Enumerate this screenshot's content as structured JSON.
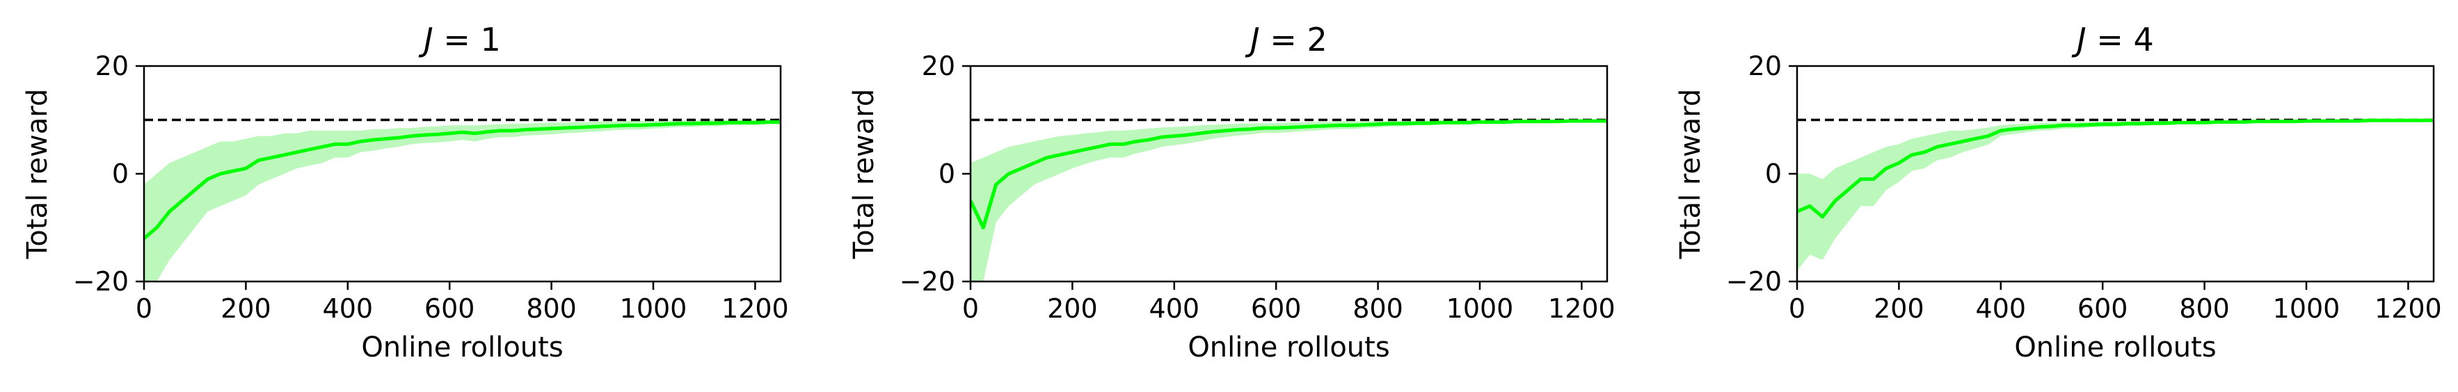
{
  "chart_data": [
    {
      "type": "line",
      "title_var": "J",
      "title_eq": " = ",
      "title_val": "1",
      "xlabel": "Online rollouts",
      "ylabel": "Total reward",
      "xlim": [
        0,
        1250
      ],
      "ylim": [
        -20,
        20
      ],
      "xticks": [
        "0",
        "200",
        "400",
        "600",
        "800",
        "1000",
        "1200"
      ],
      "yticks": [
        "−20",
        "0",
        "20"
      ],
      "reference_line": 10,
      "grid": false,
      "line_color": "#00ff00",
      "band_color": "#a6f5a6",
      "x": [
        0,
        25,
        50,
        75,
        100,
        125,
        150,
        175,
        200,
        225,
        250,
        275,
        300,
        325,
        350,
        375,
        400,
        425,
        450,
        475,
        500,
        525,
        550,
        575,
        600,
        625,
        650,
        675,
        700,
        725,
        750,
        775,
        800,
        825,
        850,
        875,
        900,
        925,
        950,
        975,
        1000,
        1025,
        1050,
        1075,
        1100,
        1125,
        1150,
        1175,
        1200,
        1225,
        1250
      ],
      "series": [
        {
          "mean": [
            -12,
            -10,
            -7,
            -5,
            -3,
            -1,
            0,
            0.5,
            1,
            2.5,
            3,
            3.5,
            4,
            4.5,
            5,
            5.5,
            5.5,
            6,
            6.3,
            6.5,
            6.7,
            7,
            7.2,
            7.3,
            7.5,
            7.7,
            7.5,
            7.8,
            8,
            8,
            8.2,
            8.3,
            8.4,
            8.5,
            8.6,
            8.7,
            8.8,
            8.9,
            9,
            9,
            9.1,
            9.2,
            9.3,
            9.3,
            9.4,
            9.4,
            9.5,
            9.5,
            9.5,
            9.6,
            9.6
          ],
          "upper": [
            -2,
            0,
            2,
            3,
            4,
            5,
            6,
            6,
            6.5,
            7,
            7,
            7.5,
            7.5,
            8,
            8,
            8,
            8,
            8,
            8.3,
            8.3,
            8.5,
            8.5,
            8.7,
            8.8,
            9,
            9,
            9,
            9.1,
            9.2,
            9.3,
            9.3,
            9.4,
            9.5,
            9.5,
            9.6,
            9.6,
            9.7,
            9.7,
            9.8,
            9.8,
            9.8,
            9.9,
            9.9,
            9.9,
            10,
            10,
            10,
            10,
            10,
            10,
            10
          ],
          "lower": [
            -20,
            -20,
            -16,
            -13,
            -10,
            -7,
            -6,
            -5,
            -4,
            -2,
            -1,
            0,
            1,
            1.5,
            2,
            3,
            3,
            4,
            4.3,
            4.7,
            5,
            5.5,
            5.7,
            5.8,
            6,
            6.3,
            6,
            6.5,
            6.8,
            6.8,
            7.1,
            7.2,
            7.3,
            7.5,
            7.6,
            7.8,
            7.9,
            8.1,
            8.2,
            8.2,
            8.4,
            8.5,
            8.7,
            8.7,
            8.8,
            8.8,
            9,
            9,
            9,
            9.2,
            9.2
          ]
        }
      ]
    },
    {
      "type": "line",
      "title_var": "J",
      "title_eq": " = ",
      "title_val": "2",
      "xlabel": "Online rollouts",
      "ylabel": "Total reward",
      "xlim": [
        0,
        1250
      ],
      "ylim": [
        -20,
        20
      ],
      "xticks": [
        "0",
        "200",
        "400",
        "600",
        "800",
        "1000",
        "1200"
      ],
      "yticks": [
        "−20",
        "0",
        "20"
      ],
      "reference_line": 10,
      "grid": false,
      "line_color": "#00ff00",
      "band_color": "#a6f5a6",
      "x": [
        0,
        25,
        50,
        75,
        100,
        125,
        150,
        175,
        200,
        225,
        250,
        275,
        300,
        325,
        350,
        375,
        400,
        425,
        450,
        475,
        500,
        525,
        550,
        575,
        600,
        625,
        650,
        675,
        700,
        725,
        750,
        775,
        800,
        825,
        850,
        875,
        900,
        925,
        950,
        975,
        1000,
        1025,
        1050,
        1075,
        1100,
        1125,
        1150,
        1175,
        1200,
        1225,
        1250
      ],
      "series": [
        {
          "mean": [
            -5,
            -10,
            -2,
            0,
            1,
            2,
            3,
            3.5,
            4,
            4.5,
            5,
            5.5,
            5.5,
            6,
            6.3,
            6.8,
            7,
            7.2,
            7.5,
            7.8,
            8,
            8.2,
            8.3,
            8.5,
            8.5,
            8.6,
            8.7,
            8.8,
            8.9,
            9,
            9,
            9.1,
            9.2,
            9.3,
            9.3,
            9.4,
            9.4,
            9.5,
            9.5,
            9.5,
            9.6,
            9.6,
            9.6,
            9.7,
            9.7,
            9.7,
            9.7,
            9.8,
            9.8,
            9.8,
            9.8
          ],
          "upper": [
            2,
            3,
            4,
            5,
            5.5,
            6,
            6.5,
            7,
            7.2,
            7.5,
            7.7,
            8,
            8,
            8.2,
            8.4,
            8.6,
            8.7,
            8.8,
            9,
            9.1,
            9.2,
            9.3,
            9.3,
            9.4,
            9.4,
            9.5,
            9.5,
            9.6,
            9.6,
            9.7,
            9.7,
            9.7,
            9.8,
            9.8,
            9.8,
            9.8,
            9.9,
            9.9,
            9.9,
            9.9,
            9.9,
            10,
            10,
            10,
            10,
            10,
            10,
            10,
            10,
            10,
            10
          ],
          "lower": [
            -20,
            -20,
            -9,
            -6,
            -4,
            -2,
            -1,
            0,
            1,
            1.8,
            2.5,
            3,
            3,
            3.8,
            4.3,
            5,
            5.3,
            5.6,
            6,
            6.5,
            6.8,
            7.1,
            7.3,
            7.6,
            7.6,
            7.7,
            7.9,
            8,
            8.2,
            8.3,
            8.3,
            8.5,
            8.6,
            8.8,
            8.8,
            9,
            9,
            9.1,
            9.1,
            9.1,
            9.3,
            9.2,
            9.2,
            9.4,
            9.4,
            9.4,
            9.4,
            9.6,
            9.6,
            9.6,
            9.6
          ]
        }
      ]
    },
    {
      "type": "line",
      "title_var": "J",
      "title_eq": " = ",
      "title_val": "4",
      "xlabel": "Online rollouts",
      "ylabel": "Total reward",
      "xlim": [
        0,
        1250
      ],
      "ylim": [
        -20,
        20
      ],
      "xticks": [
        "0",
        "200",
        "400",
        "600",
        "800",
        "1000",
        "1200"
      ],
      "yticks": [
        "−20",
        "0",
        "20"
      ],
      "reference_line": 10,
      "grid": false,
      "line_color": "#00ff00",
      "band_color": "#a6f5a6",
      "x": [
        0,
        25,
        50,
        75,
        100,
        125,
        150,
        175,
        200,
        225,
        250,
        275,
        300,
        325,
        350,
        375,
        400,
        425,
        450,
        475,
        500,
        525,
        550,
        575,
        600,
        625,
        650,
        675,
        700,
        725,
        750,
        775,
        800,
        825,
        850,
        875,
        900,
        925,
        950,
        975,
        1000,
        1025,
        1050,
        1075,
        1100,
        1125,
        1150,
        1175,
        1200,
        1225,
        1250
      ],
      "series": [
        {
          "mean": [
            -7,
            -6,
            -8,
            -5,
            -3,
            -1,
            -1,
            1,
            2,
            3.5,
            4,
            5,
            5.5,
            6,
            6.5,
            7,
            8,
            8.3,
            8.5,
            8.7,
            8.8,
            9,
            9,
            9.1,
            9.2,
            9.2,
            9.3,
            9.3,
            9.4,
            9.4,
            9.5,
            9.5,
            9.5,
            9.6,
            9.6,
            9.6,
            9.7,
            9.7,
            9.7,
            9.7,
            9.8,
            9.8,
            9.8,
            9.8,
            9.8,
            9.9,
            9.9,
            9.9,
            9.9,
            9.9,
            9.9
          ],
          "upper": [
            0,
            0,
            -1,
            1,
            2,
            3,
            4,
            5,
            5.5,
            6.5,
            7,
            7.5,
            8,
            8,
            8.3,
            8.6,
            9,
            9.2,
            9.3,
            9.4,
            9.5,
            9.6,
            9.6,
            9.6,
            9.7,
            9.7,
            9.7,
            9.7,
            9.8,
            9.8,
            9.8,
            9.8,
            9.8,
            9.9,
            9.9,
            9.9,
            9.9,
            9.9,
            9.9,
            9.9,
            10,
            10,
            10,
            10,
            10,
            10,
            10,
            10,
            10,
            10,
            10
          ],
          "lower": [
            -18,
            -15,
            -16,
            -12,
            -9,
            -6,
            -6,
            -3,
            -1.5,
            0.5,
            1,
            2.5,
            3,
            4,
            4.7,
            5.4,
            7,
            7.4,
            7.7,
            8,
            8.1,
            8.4,
            8.4,
            8.6,
            8.7,
            8.7,
            8.9,
            8.9,
            9,
            9,
            9.2,
            9.2,
            9.2,
            9.3,
            9.3,
            9.3,
            9.5,
            9.5,
            9.5,
            9.5,
            9.6,
            9.6,
            9.6,
            9.6,
            9.6,
            9.8,
            9.8,
            9.8,
            9.8,
            9.8,
            9.8
          ]
        }
      ]
    }
  ]
}
